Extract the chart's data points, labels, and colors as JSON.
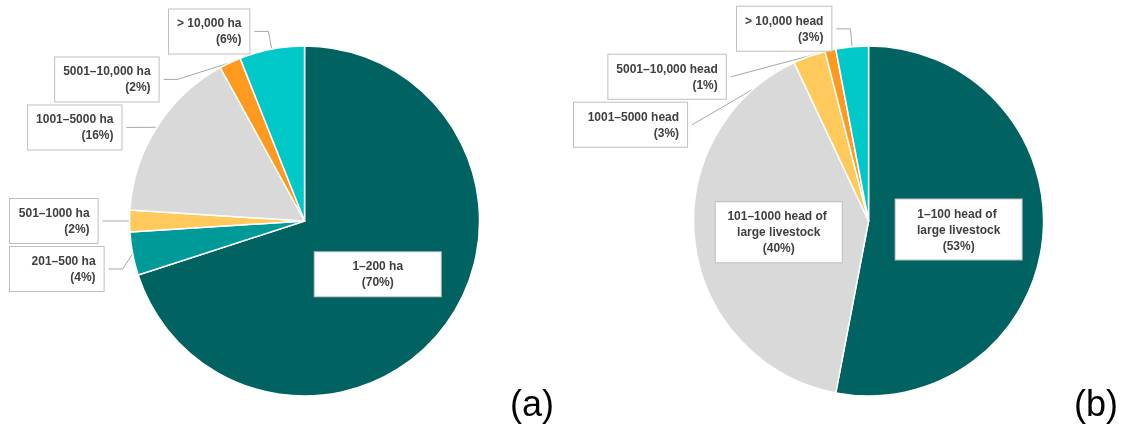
{
  "chart_data": [
    {
      "type": "pie",
      "categories": [
        "1–200 ha",
        "201–500 ha",
        "501–1000 ha",
        "1001–5000 ha",
        "5001–10,000 ha",
        "> 10,000 ha"
      ],
      "values": [
        70,
        4,
        2,
        16,
        2,
        6
      ],
      "value_labels": [
        "(70%)",
        "(4%)",
        "(2%)",
        "(16%)",
        "(2%)",
        "(6%)"
      ],
      "colors": [
        "#006361",
        "#009a98",
        "#ffc95c",
        "#d9d9d9",
        "#ff9a1e",
        "#00c8c8"
      ],
      "annotations": [
        "(a)"
      ]
    },
    {
      "type": "pie",
      "categories": [
        "1–100 head of large livestock",
        "101–1000 head of large livestock",
        "1001–5000 head",
        "5001–10,000 head",
        "> 10,000 head"
      ],
      "values": [
        53,
        40,
        3,
        1,
        3
      ],
      "value_labels": [
        "(53%)",
        "(40%)",
        "(3%)",
        "(1%)",
        "(3%)"
      ],
      "colors": [
        "#006361",
        "#d9d9d9",
        "#ffc95c",
        "#ff9a1e",
        "#00c8c8"
      ],
      "annotations": [
        "(b)"
      ]
    }
  ]
}
